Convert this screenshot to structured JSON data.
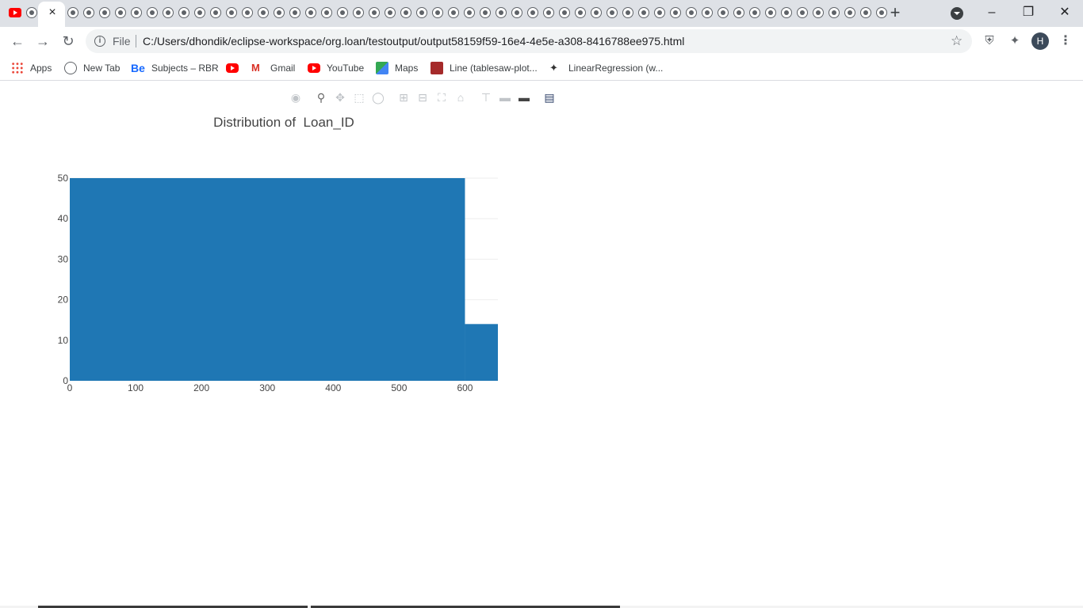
{
  "browser": {
    "tab_count": 52,
    "active_tab_close": "×",
    "new_tab": "+",
    "window": {
      "minimize": "–",
      "restore": "❐",
      "close": "✕"
    },
    "scheme": "File",
    "url": "C:/Users/dhondik/eclipse-workspace/org.loan/testoutput/output58159f59-16e4-4e5e-a308-8416788ee975.html",
    "profile_initial": "H"
  },
  "bookmarks": [
    {
      "label": "Apps",
      "icon": "apps-grid-icon"
    },
    {
      "label": "New Tab",
      "icon": "globe-icon"
    },
    {
      "label": "Subjects – RBR",
      "icon": "behance-icon"
    },
    {
      "label": "",
      "icon": "youtube-icon"
    },
    {
      "label": "Gmail",
      "icon": "gmail-icon"
    },
    {
      "label": "YouTube",
      "icon": "youtube-icon"
    },
    {
      "label": "Maps",
      "icon": "maps-icon"
    },
    {
      "label": "Line (tablesaw-plot...",
      "icon": "book-icon"
    },
    {
      "label": "LinearRegression (w...",
      "icon": "bird-icon"
    }
  ],
  "modebar": [
    "camera-icon",
    "zoom-icon",
    "pan-icon",
    "box-select-icon",
    "lasso-icon",
    "zoom-in-icon",
    "zoom-out-icon",
    "autoscale-icon",
    "reset-axes-icon",
    "spike-lines-icon",
    "hover-closest-icon",
    "hover-compare-icon",
    "plotly-logo-icon"
  ],
  "chart_data": {
    "type": "bar",
    "title": "Distribution of  Loan_ID",
    "xlabel": "",
    "ylabel": "",
    "bins": [
      {
        "x0": 0,
        "x1": 600,
        "count": 50
      },
      {
        "x0": 600,
        "x1": 650,
        "count": 14
      }
    ],
    "xlim": [
      0,
      650
    ],
    "ylim": [
      0,
      50
    ],
    "xticks": [
      0,
      100,
      200,
      300,
      400,
      500,
      600
    ],
    "yticks": [
      0,
      10,
      20,
      30,
      40,
      50
    ],
    "color": "#1f77b4",
    "grid": true
  }
}
